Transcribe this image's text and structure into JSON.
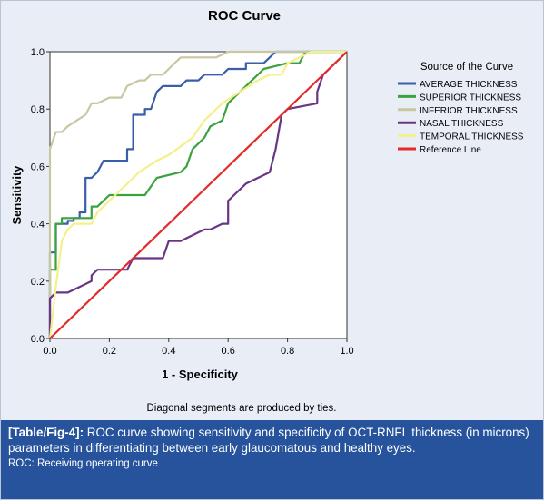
{
  "chart_data": {
    "type": "line",
    "title": "ROC Curve",
    "xlabel": "1 - Specificity",
    "ylabel": "Sensitivity",
    "xlim": [
      0,
      1
    ],
    "ylim": [
      0,
      1
    ],
    "xticks": [
      "0.0",
      "0.2",
      "0.4",
      "0.6",
      "0.8",
      "1.0"
    ],
    "yticks": [
      "0.0",
      "0.2",
      "0.4",
      "0.6",
      "0.8",
      "1.0"
    ],
    "grid": false,
    "legend_title": "Source of the Curve",
    "legend_position": "right",
    "footnote": "Diagonal segments are produced by ties.",
    "series": [
      {
        "name": "AVERAGE THICKNESS",
        "color": "#3b5ea8",
        "points": [
          [
            0,
            0
          ],
          [
            0,
            0.3
          ],
          [
            0.02,
            0.3
          ],
          [
            0.02,
            0.4
          ],
          [
            0.06,
            0.4
          ],
          [
            0.06,
            0.41
          ],
          [
            0.08,
            0.41
          ],
          [
            0.08,
            0.42
          ],
          [
            0.1,
            0.42
          ],
          [
            0.1,
            0.44
          ],
          [
            0.12,
            0.44
          ],
          [
            0.12,
            0.56
          ],
          [
            0.14,
            0.56
          ],
          [
            0.16,
            0.58
          ],
          [
            0.18,
            0.62
          ],
          [
            0.26,
            0.62
          ],
          [
            0.26,
            0.66
          ],
          [
            0.28,
            0.66
          ],
          [
            0.28,
            0.78
          ],
          [
            0.32,
            0.78
          ],
          [
            0.32,
            0.8
          ],
          [
            0.34,
            0.8
          ],
          [
            0.36,
            0.86
          ],
          [
            0.38,
            0.88
          ],
          [
            0.44,
            0.88
          ],
          [
            0.46,
            0.9
          ],
          [
            0.5,
            0.9
          ],
          [
            0.52,
            0.92
          ],
          [
            0.58,
            0.92
          ],
          [
            0.6,
            0.94
          ],
          [
            0.66,
            0.94
          ],
          [
            0.66,
            0.96
          ],
          [
            0.72,
            0.96
          ],
          [
            0.74,
            0.98
          ],
          [
            0.76,
            1.0
          ],
          [
            1.0,
            1.0
          ]
        ]
      },
      {
        "name": "SUPERIOR THICKNESS",
        "color": "#3aa23e",
        "points": [
          [
            0,
            0
          ],
          [
            0,
            0.24
          ],
          [
            0.02,
            0.24
          ],
          [
            0.02,
            0.4
          ],
          [
            0.04,
            0.4
          ],
          [
            0.04,
            0.42
          ],
          [
            0.14,
            0.42
          ],
          [
            0.14,
            0.46
          ],
          [
            0.16,
            0.46
          ],
          [
            0.2,
            0.5
          ],
          [
            0.32,
            0.5
          ],
          [
            0.36,
            0.56
          ],
          [
            0.44,
            0.58
          ],
          [
            0.46,
            0.6
          ],
          [
            0.48,
            0.66
          ],
          [
            0.52,
            0.7
          ],
          [
            0.54,
            0.74
          ],
          [
            0.58,
            0.76
          ],
          [
            0.6,
            0.82
          ],
          [
            0.62,
            0.84
          ],
          [
            0.66,
            0.88
          ],
          [
            0.7,
            0.92
          ],
          [
            0.72,
            0.94
          ],
          [
            0.76,
            0.95
          ],
          [
            0.8,
            0.96
          ],
          [
            0.84,
            0.96
          ],
          [
            0.86,
            1.0
          ],
          [
            1.0,
            1.0
          ]
        ]
      },
      {
        "name": "INFERIOR THICKNESS",
        "color": "#c9c7a1",
        "points": [
          [
            0,
            0
          ],
          [
            0,
            0.66
          ],
          [
            0.02,
            0.72
          ],
          [
            0.04,
            0.72
          ],
          [
            0.06,
            0.74
          ],
          [
            0.12,
            0.78
          ],
          [
            0.14,
            0.82
          ],
          [
            0.16,
            0.82
          ],
          [
            0.2,
            0.84
          ],
          [
            0.24,
            0.84
          ],
          [
            0.26,
            0.88
          ],
          [
            0.3,
            0.9
          ],
          [
            0.32,
            0.9
          ],
          [
            0.34,
            0.92
          ],
          [
            0.38,
            0.92
          ],
          [
            0.4,
            0.94
          ],
          [
            0.42,
            0.96
          ],
          [
            0.44,
            0.98
          ],
          [
            0.56,
            0.98
          ],
          [
            0.6,
            1.0
          ],
          [
            1.0,
            1.0
          ]
        ]
      },
      {
        "name": "NASAL THICKNESS",
        "color": "#6a3585",
        "points": [
          [
            0,
            0
          ],
          [
            0,
            0.14
          ],
          [
            0.02,
            0.16
          ],
          [
            0.06,
            0.16
          ],
          [
            0.1,
            0.18
          ],
          [
            0.14,
            0.2
          ],
          [
            0.14,
            0.22
          ],
          [
            0.16,
            0.24
          ],
          [
            0.26,
            0.24
          ],
          [
            0.28,
            0.28
          ],
          [
            0.38,
            0.28
          ],
          [
            0.4,
            0.34
          ],
          [
            0.44,
            0.34
          ],
          [
            0.48,
            0.36
          ],
          [
            0.52,
            0.38
          ],
          [
            0.54,
            0.38
          ],
          [
            0.58,
            0.4
          ],
          [
            0.6,
            0.4
          ],
          [
            0.6,
            0.48
          ],
          [
            0.62,
            0.5
          ],
          [
            0.66,
            0.54
          ],
          [
            0.74,
            0.58
          ],
          [
            0.76,
            0.66
          ],
          [
            0.78,
            0.78
          ],
          [
            0.8,
            0.8
          ],
          [
            0.9,
            0.82
          ],
          [
            0.9,
            0.86
          ],
          [
            0.92,
            0.92
          ],
          [
            0.94,
            0.94
          ],
          [
            0.96,
            0.96
          ],
          [
            1.0,
            1.0
          ]
        ]
      },
      {
        "name": "TEMPORAL THICKNESS",
        "color": "#f4f08a",
        "points": [
          [
            0,
            0
          ],
          [
            0.02,
            0.18
          ],
          [
            0.04,
            0.34
          ],
          [
            0.06,
            0.38
          ],
          [
            0.08,
            0.4
          ],
          [
            0.14,
            0.4
          ],
          [
            0.16,
            0.44
          ],
          [
            0.22,
            0.5
          ],
          [
            0.26,
            0.54
          ],
          [
            0.3,
            0.58
          ],
          [
            0.36,
            0.62
          ],
          [
            0.4,
            0.64
          ],
          [
            0.48,
            0.7
          ],
          [
            0.52,
            0.76
          ],
          [
            0.58,
            0.82
          ],
          [
            0.64,
            0.86
          ],
          [
            0.7,
            0.9
          ],
          [
            0.74,
            0.92
          ],
          [
            0.78,
            0.92
          ],
          [
            0.8,
            0.96
          ],
          [
            0.84,
            0.98
          ],
          [
            0.88,
            1.0
          ],
          [
            1.0,
            1.0
          ]
        ]
      },
      {
        "name": "Reference Line",
        "color": "#e32b2b",
        "points": [
          [
            0,
            0
          ],
          [
            1,
            1
          ]
        ]
      }
    ]
  },
  "caption": {
    "tag": "[Table/Fig-4]:",
    "text": " ROC curve showing sensitivity and specificity of OCT-RNFL thickness (in microns) parameters in differentiating between early glaucomatous and healthy eyes.",
    "note": "ROC: Receiving operating curve"
  }
}
